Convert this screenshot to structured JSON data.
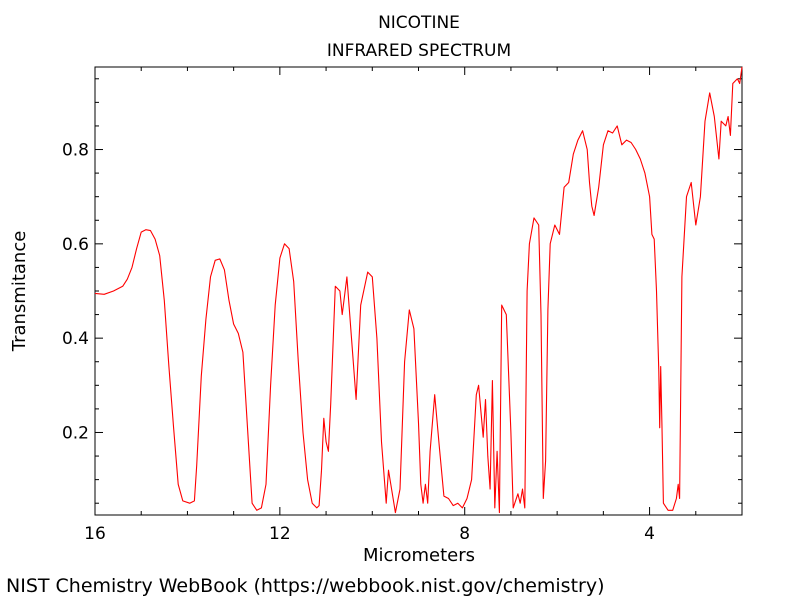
{
  "chart_data": {
    "type": "line",
    "title": "NICOTINE",
    "subtitle": "INFRARED SPECTRUM",
    "xlabel": "Micrometers",
    "ylabel": "Transmitance",
    "xlim": [
      16,
      2
    ],
    "ylim": [
      0.025,
      0.975
    ],
    "x_ticks": [
      16,
      12,
      8,
      4
    ],
    "y_ticks": [
      0.2,
      0.4,
      0.6,
      0.8
    ],
    "x_tick_labels": [
      "16",
      "12",
      "8",
      "4"
    ],
    "y_tick_labels": [
      "0.2",
      "0.4",
      "0.6",
      "0.8"
    ],
    "grid": false,
    "legend": "none",
    "series": [
      {
        "color": "#ff0000",
        "points": [
          [
            16.0,
            0.495
          ],
          [
            15.8,
            0.493
          ],
          [
            15.6,
            0.5
          ],
          [
            15.4,
            0.51
          ],
          [
            15.3,
            0.525
          ],
          [
            15.2,
            0.55
          ],
          [
            15.1,
            0.59
          ],
          [
            15.0,
            0.625
          ],
          [
            14.9,
            0.63
          ],
          [
            14.8,
            0.628
          ],
          [
            14.7,
            0.61
          ],
          [
            14.6,
            0.575
          ],
          [
            14.5,
            0.48
          ],
          [
            14.4,
            0.34
          ],
          [
            14.3,
            0.21
          ],
          [
            14.2,
            0.09
          ],
          [
            14.1,
            0.055
          ],
          [
            13.95,
            0.05
          ],
          [
            13.85,
            0.055
          ],
          [
            13.8,
            0.13
          ],
          [
            13.7,
            0.32
          ],
          [
            13.6,
            0.44
          ],
          [
            13.5,
            0.53
          ],
          [
            13.4,
            0.565
          ],
          [
            13.3,
            0.568
          ],
          [
            13.2,
            0.545
          ],
          [
            13.1,
            0.48
          ],
          [
            13.0,
            0.43
          ],
          [
            12.9,
            0.41
          ],
          [
            12.8,
            0.37
          ],
          [
            12.7,
            0.21
          ],
          [
            12.6,
            0.05
          ],
          [
            12.5,
            0.035
          ],
          [
            12.4,
            0.04
          ],
          [
            12.3,
            0.09
          ],
          [
            12.2,
            0.3
          ],
          [
            12.1,
            0.47
          ],
          [
            12.0,
            0.57
          ],
          [
            11.9,
            0.6
          ],
          [
            11.8,
            0.59
          ],
          [
            11.7,
            0.52
          ],
          [
            11.6,
            0.35
          ],
          [
            11.5,
            0.2
          ],
          [
            11.4,
            0.1
          ],
          [
            11.3,
            0.05
          ],
          [
            11.2,
            0.04
          ],
          [
            11.15,
            0.045
          ],
          [
            11.1,
            0.12
          ],
          [
            11.05,
            0.23
          ],
          [
            11.0,
            0.18
          ],
          [
            10.95,
            0.16
          ],
          [
            10.9,
            0.26
          ],
          [
            10.8,
            0.51
          ],
          [
            10.7,
            0.5
          ],
          [
            10.65,
            0.45
          ],
          [
            10.55,
            0.53
          ],
          [
            10.45,
            0.4
          ],
          [
            10.35,
            0.27
          ],
          [
            10.25,
            0.47
          ],
          [
            10.1,
            0.54
          ],
          [
            10.0,
            0.53
          ],
          [
            9.9,
            0.4
          ],
          [
            9.8,
            0.18
          ],
          [
            9.7,
            0.05
          ],
          [
            9.65,
            0.12
          ],
          [
            9.6,
            0.09
          ],
          [
            9.5,
            0.03
          ],
          [
            9.4,
            0.08
          ],
          [
            9.3,
            0.35
          ],
          [
            9.2,
            0.46
          ],
          [
            9.1,
            0.42
          ],
          [
            9.0,
            0.22
          ],
          [
            8.95,
            0.09
          ],
          [
            8.9,
            0.05
          ],
          [
            8.85,
            0.09
          ],
          [
            8.8,
            0.05
          ],
          [
            8.75,
            0.16
          ],
          [
            8.65,
            0.28
          ],
          [
            8.55,
            0.17
          ],
          [
            8.45,
            0.065
          ],
          [
            8.35,
            0.06
          ],
          [
            8.25,
            0.045
          ],
          [
            8.15,
            0.05
          ],
          [
            8.05,
            0.04
          ],
          [
            7.95,
            0.06
          ],
          [
            7.85,
            0.1
          ],
          [
            7.75,
            0.28
          ],
          [
            7.7,
            0.3
          ],
          [
            7.6,
            0.19
          ],
          [
            7.55,
            0.27
          ],
          [
            7.5,
            0.15
          ],
          [
            7.45,
            0.08
          ],
          [
            7.4,
            0.31
          ],
          [
            7.35,
            0.04
          ],
          [
            7.3,
            0.16
          ],
          [
            7.25,
            0.03
          ],
          [
            7.2,
            0.47
          ],
          [
            7.1,
            0.45
          ],
          [
            7.0,
            0.2
          ],
          [
            6.95,
            0.04
          ],
          [
            6.85,
            0.07
          ],
          [
            6.8,
            0.05
          ],
          [
            6.75,
            0.08
          ],
          [
            6.7,
            0.04
          ],
          [
            6.65,
            0.5
          ],
          [
            6.6,
            0.6
          ],
          [
            6.5,
            0.655
          ],
          [
            6.4,
            0.64
          ],
          [
            6.35,
            0.45
          ],
          [
            6.3,
            0.06
          ],
          [
            6.25,
            0.14
          ],
          [
            6.2,
            0.46
          ],
          [
            6.15,
            0.6
          ],
          [
            6.05,
            0.64
          ],
          [
            5.95,
            0.62
          ],
          [
            5.85,
            0.72
          ],
          [
            5.75,
            0.73
          ],
          [
            5.65,
            0.79
          ],
          [
            5.55,
            0.82
          ],
          [
            5.45,
            0.84
          ],
          [
            5.35,
            0.8
          ],
          [
            5.3,
            0.73
          ],
          [
            5.25,
            0.68
          ],
          [
            5.2,
            0.66
          ],
          [
            5.1,
            0.72
          ],
          [
            5.0,
            0.81
          ],
          [
            4.9,
            0.84
          ],
          [
            4.8,
            0.835
          ],
          [
            4.7,
            0.85
          ],
          [
            4.6,
            0.81
          ],
          [
            4.5,
            0.82
          ],
          [
            4.4,
            0.815
          ],
          [
            4.3,
            0.8
          ],
          [
            4.2,
            0.78
          ],
          [
            4.1,
            0.75
          ],
          [
            4.0,
            0.7
          ],
          [
            3.95,
            0.62
          ],
          [
            3.9,
            0.61
          ],
          [
            3.85,
            0.5
          ],
          [
            3.8,
            0.33
          ],
          [
            3.78,
            0.21
          ],
          [
            3.76,
            0.34
          ],
          [
            3.73,
            0.21
          ],
          [
            3.7,
            0.05
          ],
          [
            3.6,
            0.035
          ],
          [
            3.5,
            0.035
          ],
          [
            3.42,
            0.06
          ],
          [
            3.38,
            0.09
          ],
          [
            3.35,
            0.06
          ],
          [
            3.3,
            0.53
          ],
          [
            3.2,
            0.7
          ],
          [
            3.1,
            0.73
          ],
          [
            3.0,
            0.64
          ],
          [
            2.9,
            0.7
          ],
          [
            2.8,
            0.86
          ],
          [
            2.7,
            0.92
          ],
          [
            2.6,
            0.87
          ],
          [
            2.5,
            0.78
          ],
          [
            2.45,
            0.86
          ],
          [
            2.35,
            0.85
          ],
          [
            2.3,
            0.87
          ],
          [
            2.25,
            0.83
          ],
          [
            2.2,
            0.94
          ],
          [
            2.1,
            0.95
          ],
          [
            2.05,
            0.94
          ],
          [
            2.0,
            0.975
          ]
        ]
      }
    ]
  },
  "footer": "NIST Chemistry WebBook (https://webbook.nist.gov/chemistry)"
}
